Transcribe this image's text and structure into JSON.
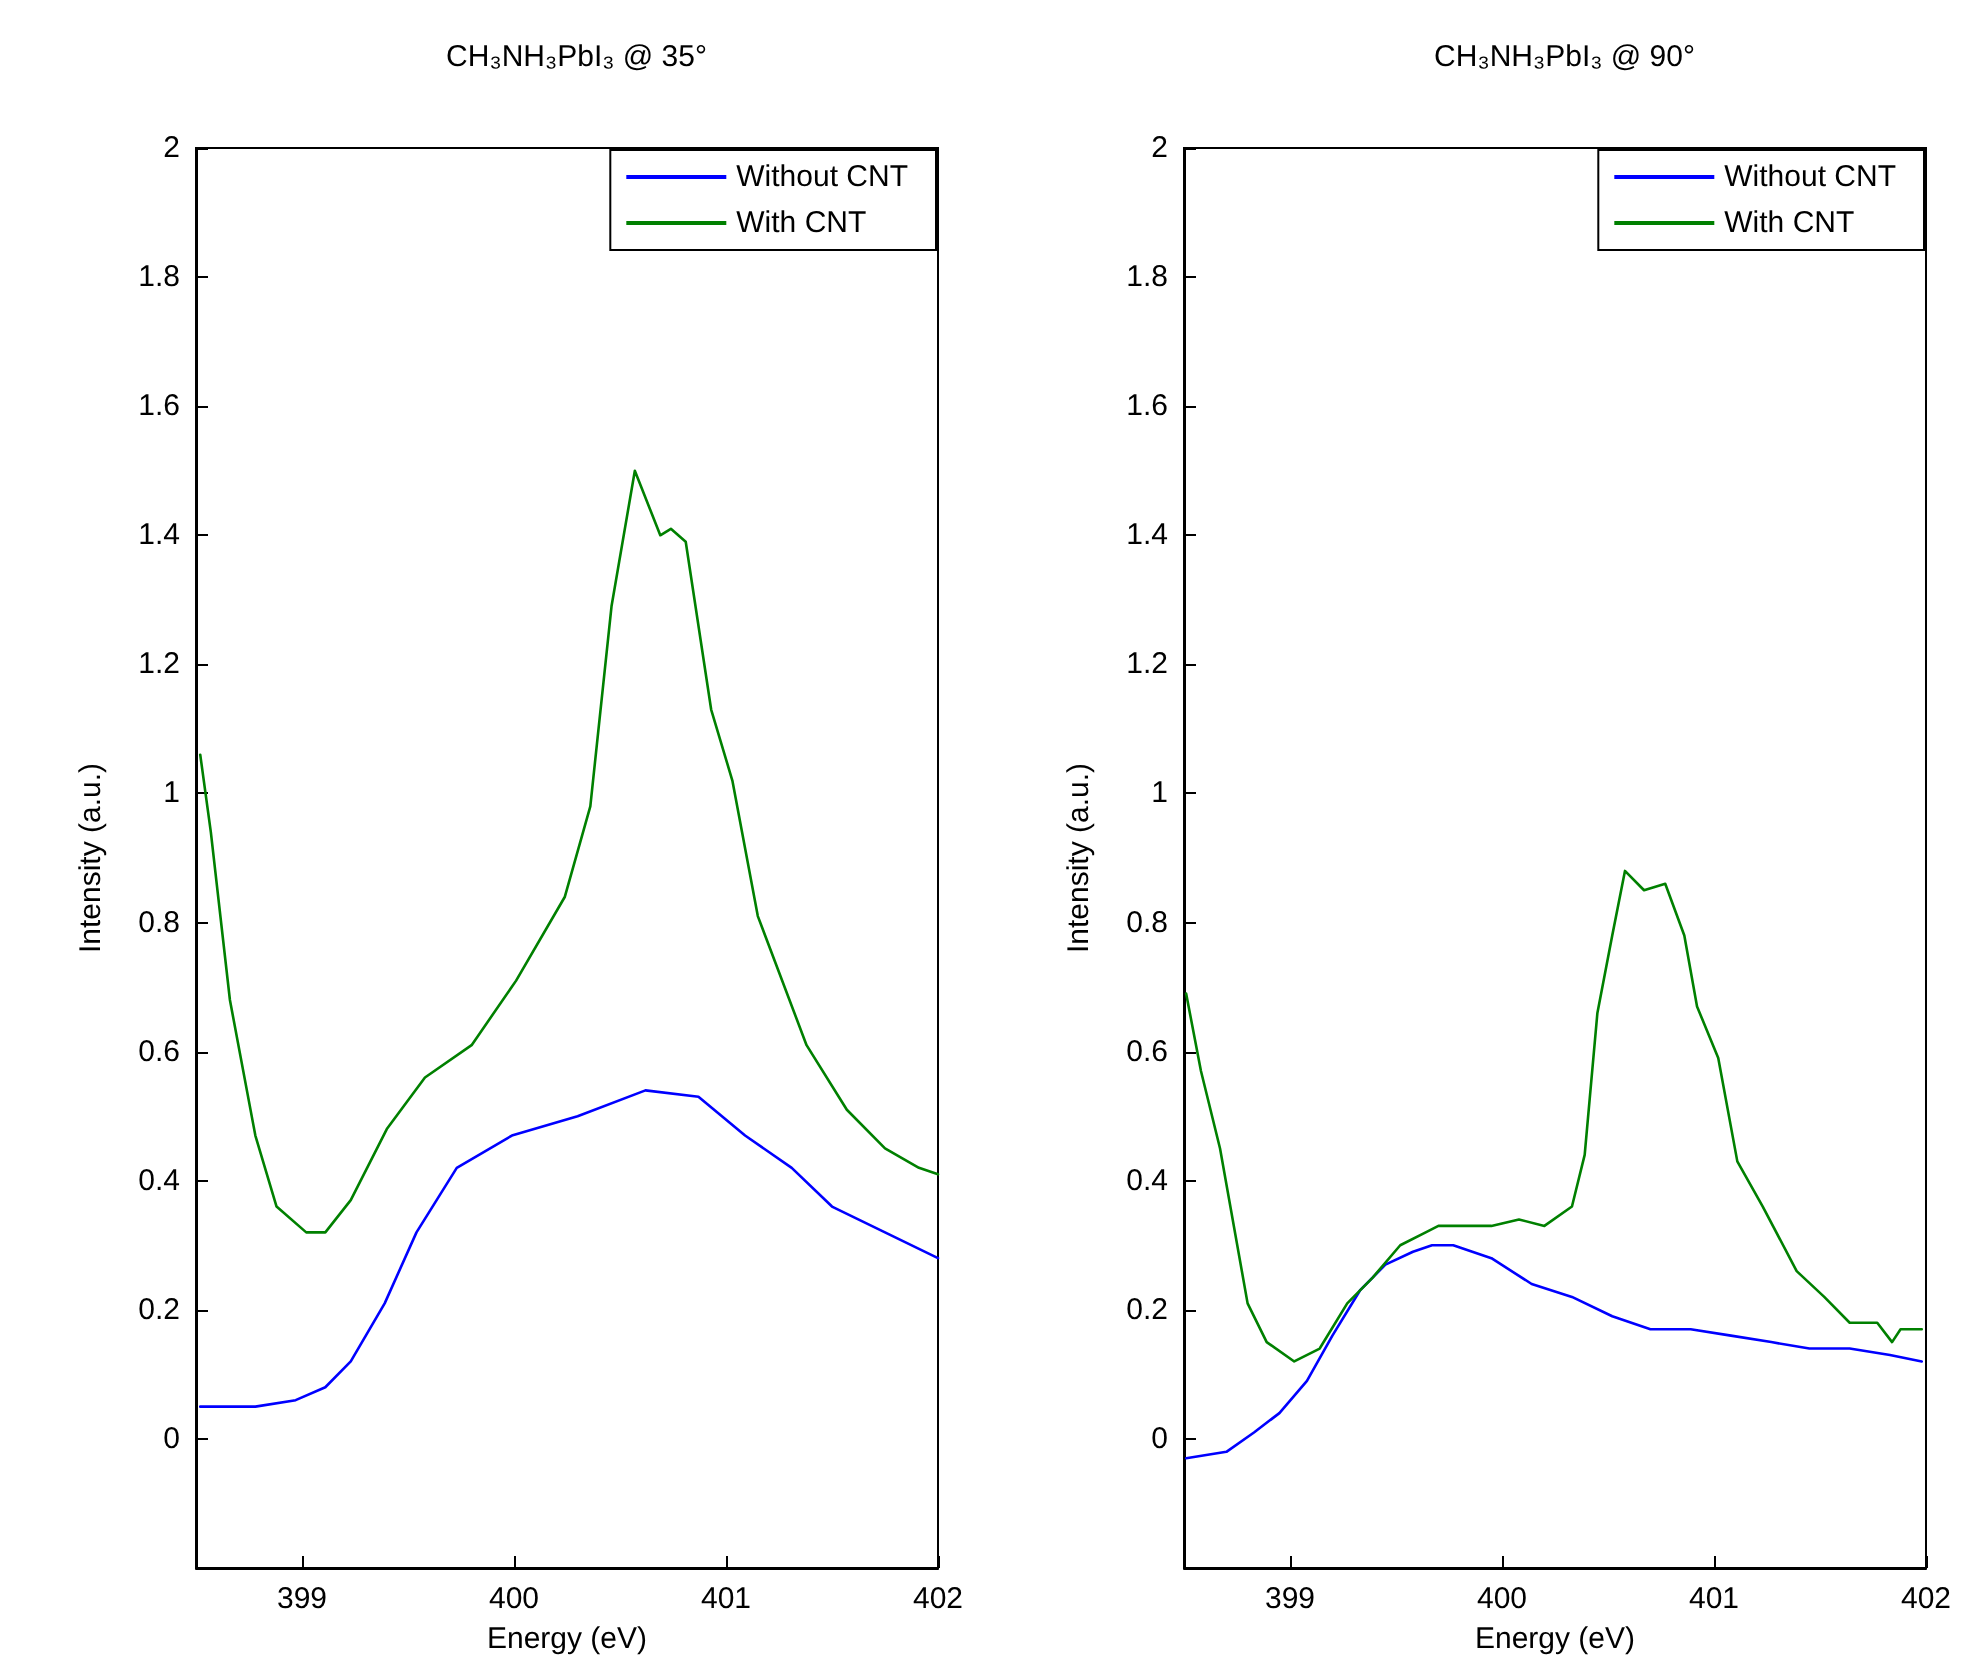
{
  "chart_data": [
    {
      "type": "line",
      "title": "CH₃NH₃PbI₃ @ 35°",
      "xlabel": "Energy (eV)",
      "ylabel": "Intensity (a.u.)",
      "xlim": [
        398.5,
        402
      ],
      "xticks": [
        399,
        400,
        401,
        402
      ],
      "ylim": [
        -0.2,
        2
      ],
      "yticks": [
        0,
        0.2,
        0.4,
        0.6,
        0.8,
        1,
        1.2,
        1.4,
        1.6,
        1.8,
        2
      ],
      "grid": false,
      "legend": "top right",
      "marker": "none",
      "line_style": "solid",
      "series": [
        {
          "name": "Without CNT",
          "color": "#0000ff",
          "x": [
            398.52,
            398.78,
            398.97,
            399.11,
            399.23,
            399.39,
            399.54,
            399.73,
            399.99,
            400.3,
            400.62,
            400.87,
            401.09,
            401.31,
            401.5,
            401.75,
            402.0
          ],
          "values": [
            0.05,
            0.05,
            0.06,
            0.08,
            0.12,
            0.21,
            0.32,
            0.42,
            0.47,
            0.5,
            0.54,
            0.53,
            0.47,
            0.42,
            0.36,
            0.32,
            0.28
          ]
        },
        {
          "name": "With CNT",
          "color": "#008000",
          "x": [
            398.52,
            398.57,
            398.66,
            398.78,
            398.88,
            399.02,
            399.11,
            399.23,
            399.4,
            399.58,
            399.8,
            400.01,
            400.24,
            400.36,
            400.46,
            400.57,
            400.69,
            400.74,
            400.81,
            400.93,
            401.03,
            401.15,
            401.38,
            401.57,
            401.75,
            401.91,
            402.0
          ],
          "values": [
            1.06,
            0.94,
            0.68,
            0.47,
            0.36,
            0.32,
            0.32,
            0.37,
            0.48,
            0.56,
            0.61,
            0.71,
            0.84,
            0.98,
            1.29,
            1.5,
            1.4,
            1.41,
            1.39,
            1.13,
            1.02,
            0.81,
            0.61,
            0.51,
            0.45,
            0.42,
            0.41
          ]
        }
      ]
    },
    {
      "type": "line",
      "title": "CH₃NH₃PbI₃ @ 90°",
      "xlabel": "Energy (eV)",
      "ylabel": "Intensity (a.u.)",
      "xlim": [
        398.5,
        402
      ],
      "xticks": [
        399,
        400,
        401,
        402
      ],
      "ylim": [
        -0.2,
        2
      ],
      "yticks": [
        0,
        0.2,
        0.4,
        0.6,
        0.8,
        1,
        1.2,
        1.4,
        1.6,
        1.8,
        2
      ],
      "grid": false,
      "legend": "top right",
      "marker": "none",
      "line_style": "solid",
      "series": [
        {
          "name": "Without CNT",
          "color": "#0000ff",
          "x": [
            398.51,
            398.7,
            398.83,
            398.95,
            399.08,
            399.2,
            399.33,
            399.45,
            399.58,
            399.67,
            399.77,
            399.95,
            400.14,
            400.33,
            400.52,
            400.7,
            400.89,
            401.08,
            401.27,
            401.45,
            401.64,
            401.83,
            401.98
          ],
          "values": [
            -0.03,
            -0.02,
            0.01,
            0.04,
            0.09,
            0.16,
            0.23,
            0.27,
            0.29,
            0.3,
            0.3,
            0.28,
            0.24,
            0.22,
            0.19,
            0.17,
            0.17,
            0.16,
            0.15,
            0.14,
            0.14,
            0.13,
            0.12
          ]
        },
        {
          "name": "With CNT",
          "color": "#008000",
          "x": [
            398.51,
            398.58,
            398.67,
            398.8,
            398.89,
            399.02,
            399.14,
            399.27,
            399.39,
            399.52,
            399.64,
            399.7,
            399.83,
            399.95,
            400.08,
            400.2,
            400.33,
            400.39,
            400.45,
            400.52,
            400.58,
            400.67,
            400.77,
            400.86,
            400.92,
            401.02,
            401.11,
            401.23,
            401.39,
            401.52,
            401.64,
            401.77,
            401.84,
            401.88,
            401.98
          ],
          "values": [
            0.69,
            0.57,
            0.45,
            0.21,
            0.15,
            0.12,
            0.14,
            0.21,
            0.25,
            0.3,
            0.32,
            0.33,
            0.33,
            0.33,
            0.34,
            0.33,
            0.36,
            0.44,
            0.66,
            0.78,
            0.88,
            0.85,
            0.86,
            0.78,
            0.67,
            0.59,
            0.43,
            0.36,
            0.26,
            0.22,
            0.18,
            0.18,
            0.15,
            0.17,
            0.17
          ]
        }
      ]
    }
  ]
}
